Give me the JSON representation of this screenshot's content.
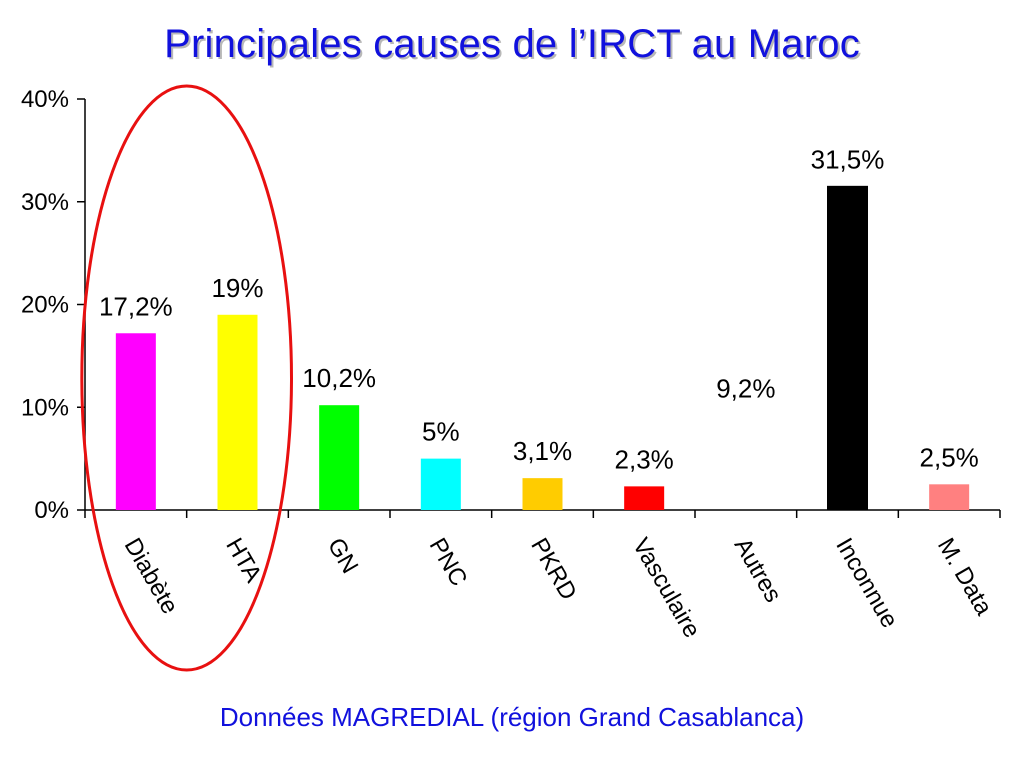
{
  "title": "Principales causes de l’IRCT au Maroc",
  "footer": "Données MAGREDIAL (région Grand Casablanca)",
  "chart_data": {
    "type": "bar",
    "categories": [
      "Diabète",
      "HTA",
      "GN",
      "PNC",
      "PKRD",
      "Vasculaire",
      "Autres",
      "Inconnue",
      "M. Data"
    ],
    "values": [
      17.2,
      19,
      10.2,
      5,
      3.1,
      2.3,
      9.2,
      31.5,
      2.5
    ],
    "value_labels": [
      "17,2%",
      "19%",
      "10,2%",
      "5%",
      "3,1%",
      "2,3%",
      "9,2%",
      "31,5%",
      "2,5%"
    ],
    "colors": [
      "#ff00ff",
      "#ffff00",
      "#00ff00",
      "#00ffff",
      "#ffcc00",
      "#ff0000",
      "#ffffff",
      "#000000",
      "#ff8080"
    ],
    "y_ticks": [
      "0%",
      "10%",
      "20%",
      "30%",
      "40%"
    ],
    "ylim": [
      0,
      40
    ],
    "grid": false,
    "highlight": {
      "categories": [
        "Diabète",
        "HTA"
      ],
      "color": "#e81010"
    }
  }
}
